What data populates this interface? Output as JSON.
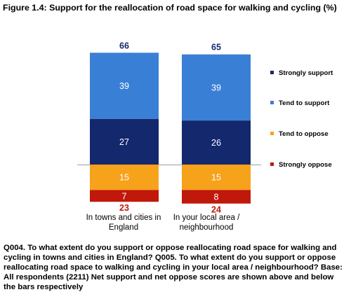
{
  "figure_title": "Figure 1.4: Support for the reallocation of road space for walking and cycling (%)",
  "chart_data": {
    "type": "bar",
    "stacked": true,
    "title": "Figure 1.4: Support for the reallocation of road space for walking and cycling (%)",
    "categories": [
      "In towns and cities in England",
      "In your local area / neighbourhood"
    ],
    "series": [
      {
        "name": "Strongly support",
        "values": [
          27,
          26
        ],
        "color": "#14286e",
        "side": "support"
      },
      {
        "name": "Tend to support",
        "values": [
          39,
          39
        ],
        "color": "#3a7fd6",
        "side": "support"
      },
      {
        "name": "Tend to oppose",
        "values": [
          15,
          15
        ],
        "color": "#f7a21b",
        "side": "oppose"
      },
      {
        "name": "Strongly oppose",
        "values": [
          7,
          8
        ],
        "color": "#c0180b",
        "side": "oppose"
      }
    ],
    "net_support": [
      66,
      65
    ],
    "net_oppose": [
      23,
      24
    ],
    "net_support_color": "#14286e",
    "net_oppose_color": "#c0180b",
    "legend_position": "right",
    "grid": false
  },
  "category_labels": {
    "england": [
      "In towns and cities in",
      "England"
    ],
    "local": [
      "In your local area /",
      "neighbourhood"
    ]
  },
  "footnote": "Q004. To what extent do you support or oppose reallocating road space for walking and cycling in towns and cities in England? Q005. To what extent do you support or oppose reallocating road space to walking and cycling in your local area / neighbourhood? Base: All respondents (2211) Net support and net oppose scores are shown above and below the bars respectively"
}
